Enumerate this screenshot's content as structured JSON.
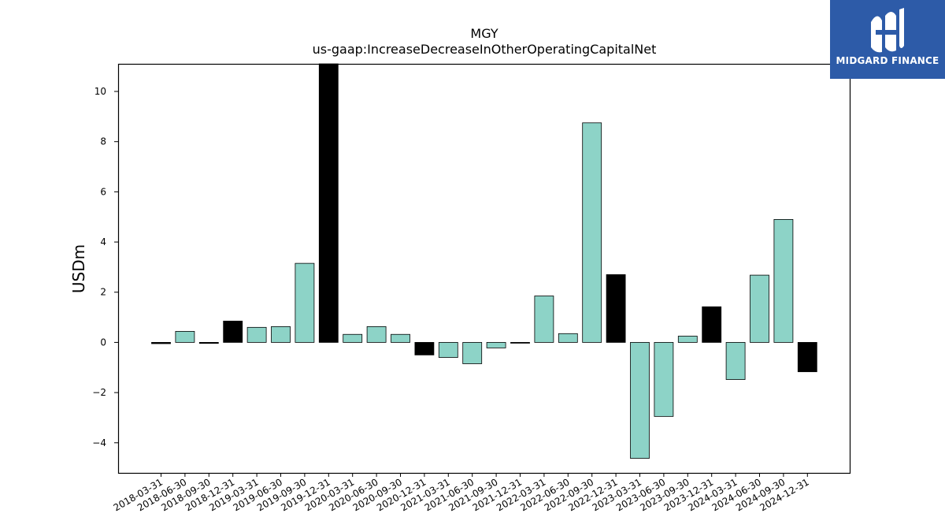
{
  "chart_data": {
    "type": "bar",
    "title": "MGY",
    "subtitle": "us-gaap:IncreaseDecreaseInOtherOperatingCapitalNet",
    "xlabel": "",
    "ylabel": "USDm",
    "ylim": [
      -5.2,
      11.1
    ],
    "yticks": [
      -4,
      -2,
      0,
      2,
      4,
      6,
      8,
      10
    ],
    "ytick_labels": [
      "−4",
      "−2",
      "0",
      "2",
      "4",
      "6",
      "8",
      "10"
    ],
    "grid": false,
    "categories": [
      "2018-03-31",
      "2018-06-30",
      "2018-09-30",
      "2018-12-31",
      "2019-03-31",
      "2019-06-30",
      "2019-09-30",
      "2019-12-31",
      "2020-03-31",
      "2020-06-30",
      "2020-09-30",
      "2020-12-31",
      "2021-03-31",
      "2021-06-30",
      "2021-09-30",
      "2021-12-31",
      "2022-03-31",
      "2022-06-30",
      "2022-09-30",
      "2022-12-31",
      "2023-03-31",
      "2023-06-30",
      "2023-09-30",
      "2023-12-31",
      "2024-03-31",
      "2024-06-30",
      "2024-09-30",
      "2024-12-31"
    ],
    "values": [
      -0.05,
      0.44,
      -0.04,
      0.85,
      0.6,
      0.63,
      3.15,
      11.5,
      0.32,
      0.63,
      0.32,
      -0.5,
      -0.6,
      -0.85,
      -0.22,
      -0.02,
      1.85,
      0.35,
      8.75,
      2.7,
      -4.62,
      -2.95,
      0.25,
      1.42,
      -1.48,
      2.68,
      4.9,
      -1.17
    ],
    "bar_colors": [
      "#000000",
      "#8dd3c7",
      "#000000",
      "#000000",
      "#8dd3c7",
      "#8dd3c7",
      "#8dd3c7",
      "#000000",
      "#8dd3c7",
      "#8dd3c7",
      "#8dd3c7",
      "#000000",
      "#8dd3c7",
      "#8dd3c7",
      "#8dd3c7",
      "#000000",
      "#8dd3c7",
      "#8dd3c7",
      "#8dd3c7",
      "#000000",
      "#8dd3c7",
      "#8dd3c7",
      "#8dd3c7",
      "#000000",
      "#8dd3c7",
      "#8dd3c7",
      "#8dd3c7",
      "#000000"
    ],
    "colors": {
      "quarter": "#8dd3c7",
      "year_end": "#000000",
      "edge": "#000000"
    }
  },
  "logo": {
    "text": "MIDGARD FINANCE",
    "background": "#2d5ba8",
    "icon": "midgard-logo-icon"
  }
}
